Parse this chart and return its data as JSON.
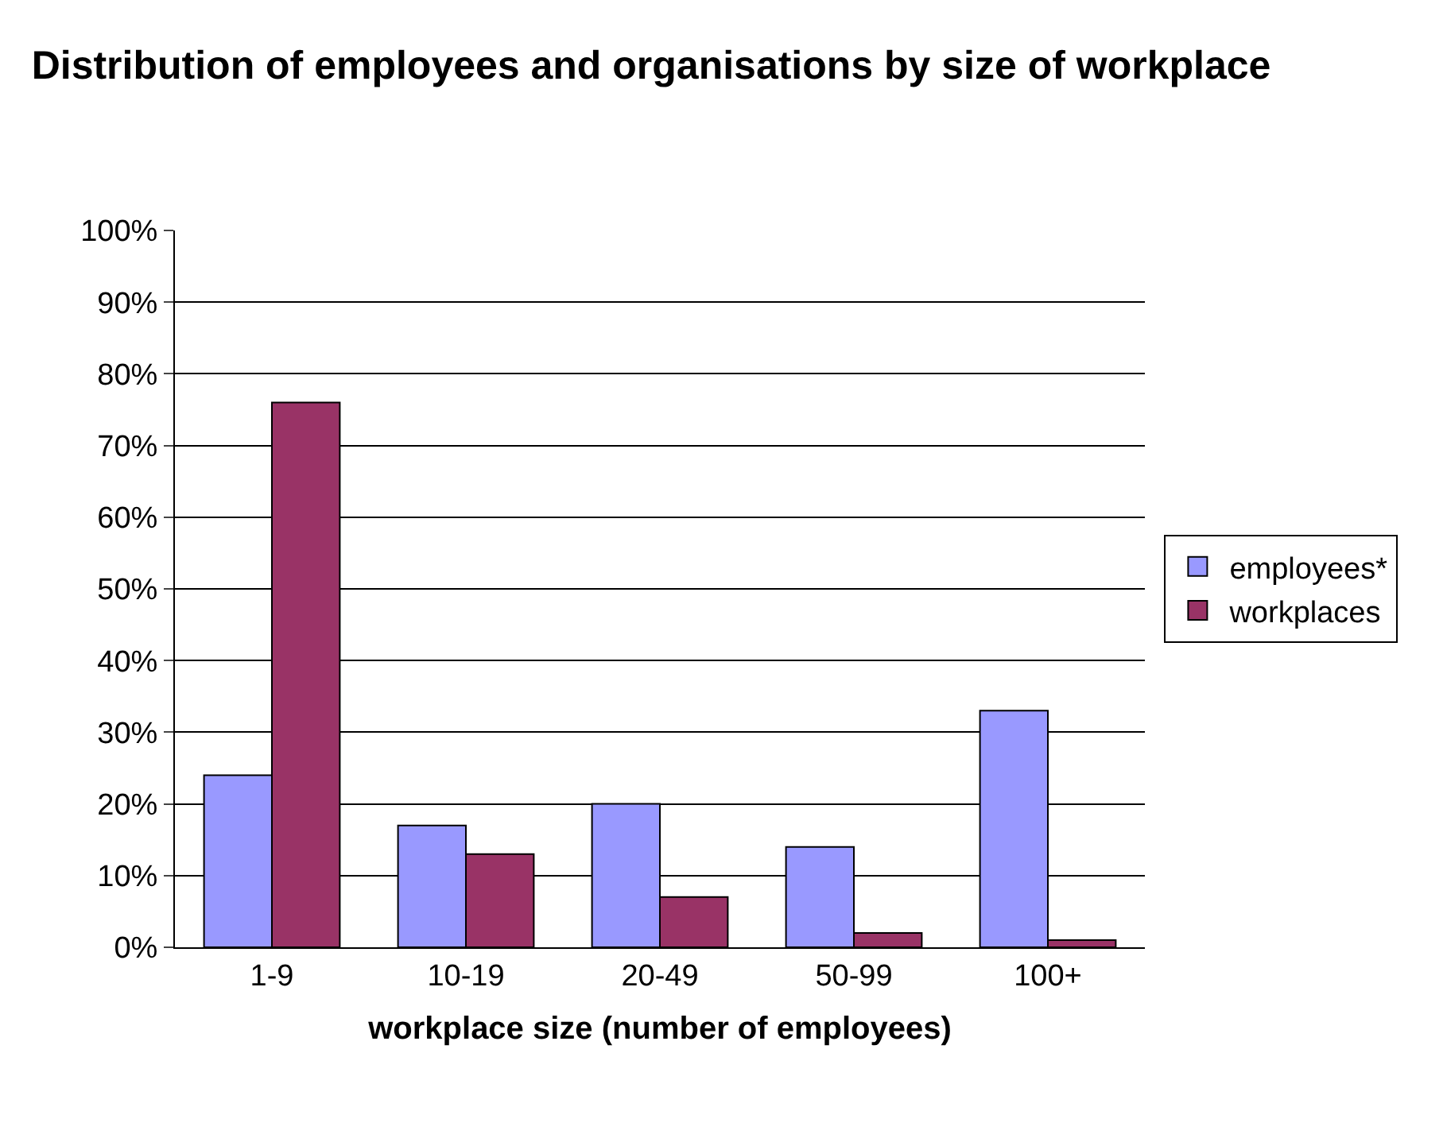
{
  "chart_data": {
    "type": "bar",
    "title": "Distribution of employees and organisations by size of workplace",
    "xlabel": "workplace size (number of employees)",
    "categories": [
      "1-9",
      "10-19",
      "20-49",
      "50-99",
      "100+"
    ],
    "series": [
      {
        "name": "employees*",
        "color": "#9999ff",
        "values": [
          24,
          17,
          20,
          14,
          33
        ]
      },
      {
        "name": "workplaces",
        "color": "#993366",
        "values": [
          76,
          13,
          7,
          2,
          1
        ]
      }
    ],
    "ylim": [
      0,
      100
    ],
    "yticks": [
      {
        "value": 0,
        "label": "0%"
      },
      {
        "value": 10,
        "label": "10%"
      },
      {
        "value": 20,
        "label": "20%"
      },
      {
        "value": 30,
        "label": "30%"
      },
      {
        "value": 40,
        "label": "40%"
      },
      {
        "value": 50,
        "label": "50%"
      },
      {
        "value": 60,
        "label": "60%"
      },
      {
        "value": 70,
        "label": "70%"
      },
      {
        "value": 80,
        "label": "80%"
      },
      {
        "value": 90,
        "label": "90%"
      },
      {
        "value": 100,
        "label": "100%"
      }
    ],
    "grid": "y",
    "legend": "right"
  }
}
